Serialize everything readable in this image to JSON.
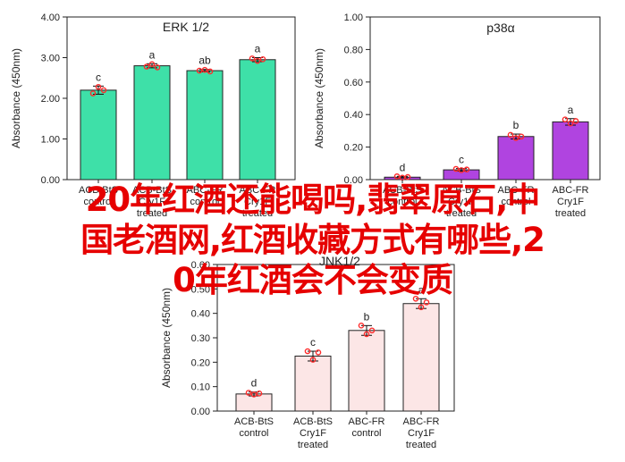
{
  "overlay_title": {
    "line1": "20年红酒还能喝吗,翡翠原石,中",
    "line2": "国老酒网,红酒收藏方式有哪些,2",
    "line3": "0年红酒会不会变质"
  },
  "chart_data": [
    {
      "type": "bar",
      "title": "ERK 1/2",
      "ylabel": "Absorbance (450nm)",
      "ylim": [
        0,
        4
      ],
      "yticks": [
        "0.00",
        "1.00",
        "2.00",
        "3.00",
        "4.00"
      ],
      "categories": [
        [
          "ACB-BtS",
          "control"
        ],
        [
          "ACB-BtS",
          "Cry1F",
          "treated"
        ],
        [
          "ABC-FR",
          "control"
        ],
        [
          "ABC-FR",
          "Cry1F",
          "treated"
        ]
      ],
      "values": [
        2.2,
        2.8,
        2.68,
        2.95
      ],
      "errors": [
        0.1,
        0.05,
        0.03,
        0.05
      ],
      "points": [
        [
          2.12,
          2.28,
          2.2
        ],
        [
          2.78,
          2.84,
          2.76
        ],
        [
          2.68,
          2.7,
          2.66
        ],
        [
          2.98,
          2.92,
          2.96
        ]
      ],
      "letters": [
        "c",
        "a",
        "ab",
        "a"
      ],
      "bar_color": "#3ee0a8",
      "grid": false
    },
    {
      "type": "bar",
      "title": "p38α",
      "ylabel": "Absorbance (450nm)",
      "ylim": [
        0,
        1
      ],
      "yticks": [
        "0.00",
        "0.20",
        "0.40",
        "0.60",
        "0.80",
        "1.00"
      ],
      "categories": [
        [
          "ACB-BtS",
          "control"
        ],
        [
          "ACB-BtS",
          "Cry1F",
          "treated"
        ],
        [
          "ABC-FR",
          "control"
        ],
        [
          "ABC-FR",
          "Cry1F",
          "treated"
        ]
      ],
      "values": [
        0.015,
        0.06,
        0.265,
        0.355
      ],
      "errors": [
        0.005,
        0.008,
        0.015,
        0.02
      ],
      "points": [
        [
          0.02,
          0.012,
          0.016
        ],
        [
          0.066,
          0.058,
          0.062
        ],
        [
          0.275,
          0.255,
          0.265
        ],
        [
          0.37,
          0.345,
          0.36
        ]
      ],
      "letters": [
        "d",
        "c",
        "b",
        "a"
      ],
      "bar_color": "#b044e0",
      "grid": false
    },
    {
      "type": "bar",
      "title": "JNK1/2",
      "ylabel": "Absorbance (450nm)",
      "ylim": [
        0,
        0.6
      ],
      "yticks": [
        "0.00",
        "0.10",
        "0.20",
        "0.30",
        "0.40",
        "0.50",
        "0.60"
      ],
      "categories": [
        [
          "ACB-BtS",
          "control"
        ],
        [
          "ACB-BtS",
          "Cry1F",
          "treated"
        ],
        [
          "ABC-FR",
          "control"
        ],
        [
          "ABC-FR",
          "Cry1F",
          "treated"
        ]
      ],
      "values": [
        0.07,
        0.225,
        0.33,
        0.44
      ],
      "errors": [
        0.008,
        0.02,
        0.02,
        0.02
      ],
      "points": [
        [
          0.075,
          0.068,
          0.072
        ],
        [
          0.245,
          0.21,
          0.24
        ],
        [
          0.35,
          0.315,
          0.33
        ],
        [
          0.46,
          0.425,
          0.445
        ]
      ],
      "letters": [
        "d",
        "c",
        "b",
        "a"
      ],
      "bar_color": "#fce6e6",
      "grid": false
    }
  ]
}
